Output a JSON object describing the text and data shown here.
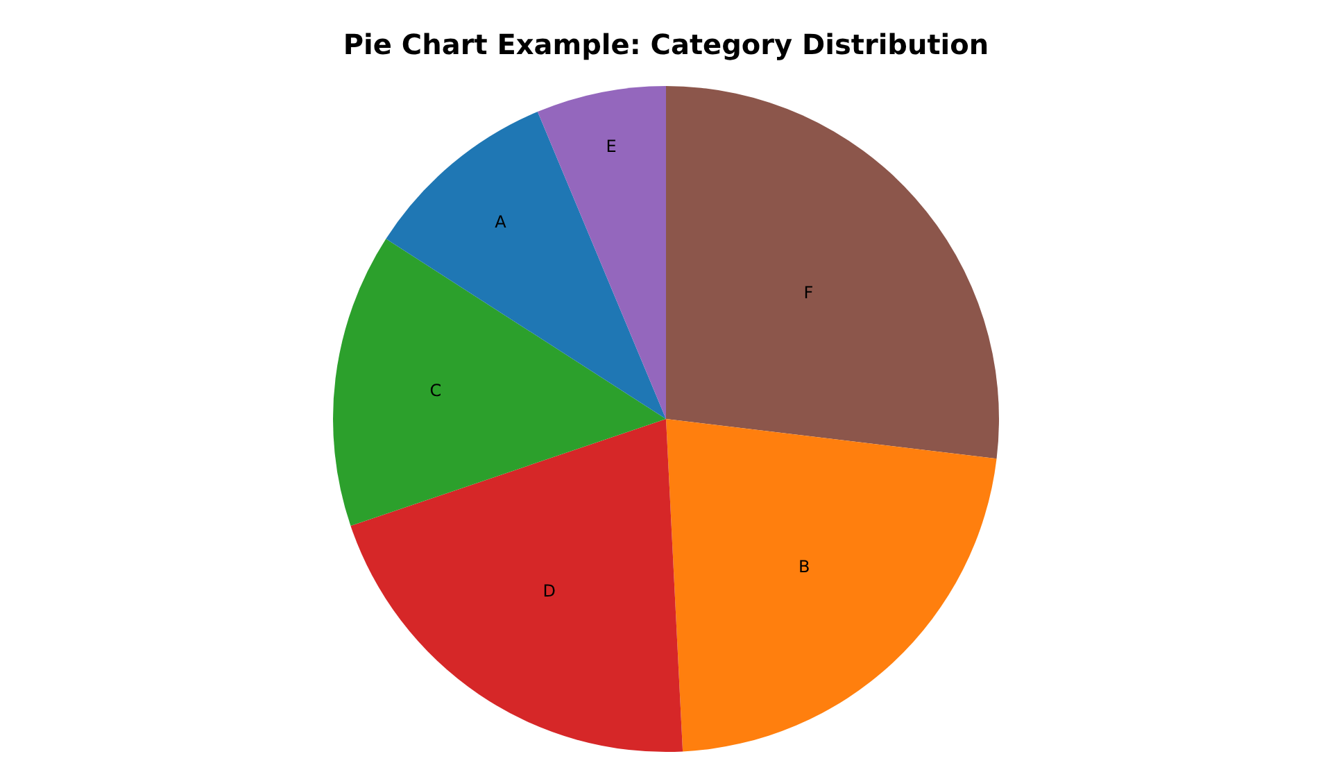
{
  "chart_data": {
    "type": "pie",
    "title": "Pie Chart Example: Category Distribution",
    "categories": [
      "F",
      "B",
      "D",
      "C",
      "A",
      "E"
    ],
    "values": [
      26.9,
      22.3,
      20.6,
      14.3,
      9.6,
      6.3
    ],
    "colors": [
      "#8c564b",
      "#ff7f0e",
      "#d62728",
      "#2ca02c",
      "#1f77b4",
      "#9467bd"
    ],
    "legend": false
  }
}
